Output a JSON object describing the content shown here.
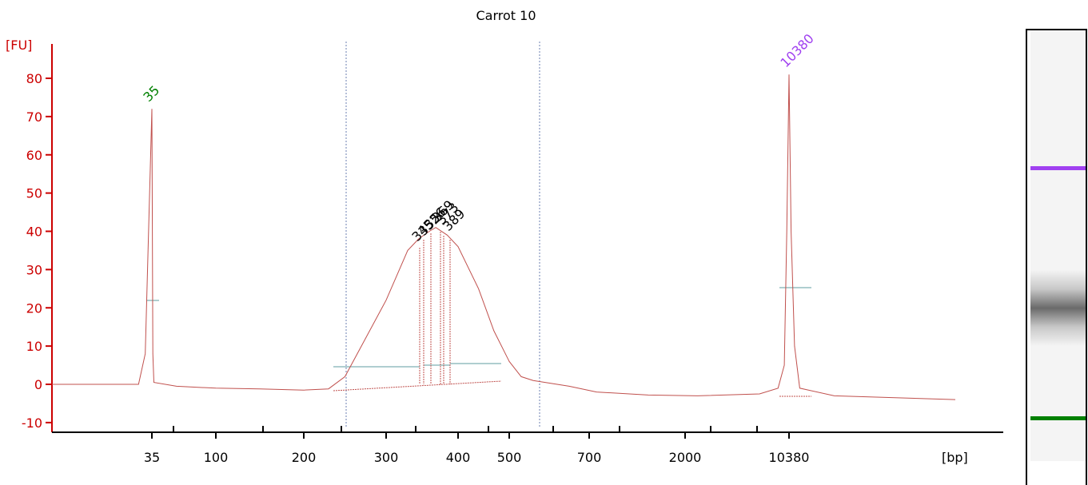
{
  "chart_data": {
    "type": "line",
    "title": "Carrot 10",
    "ylabel": "[FU]",
    "xlabel": "[bp]",
    "ylim": [
      -12,
      88
    ],
    "y_ticks": [
      -10,
      0,
      10,
      20,
      30,
      40,
      50,
      60,
      70,
      80
    ],
    "x_tick_labels": [
      "35",
      "100",
      "200",
      "300",
      "400",
      "500",
      "700",
      "2000",
      "10380"
    ],
    "x_tick_positions": [
      35,
      100,
      200,
      300,
      400,
      500,
      700,
      2000,
      10380
    ],
    "x_axis_scale": "nonlinear (electrophoresis size ladder)",
    "series": [
      {
        "color": "#c0504d",
        "points": [
          [
            20,
            0
          ],
          [
            33,
            0
          ],
          [
            34,
            8
          ],
          [
            35,
            72
          ],
          [
            36,
            8
          ],
          [
            37,
            0.5
          ],
          [
            60,
            -0.5
          ],
          [
            100,
            -1
          ],
          [
            150,
            -1.2
          ],
          [
            200,
            -1.5
          ],
          [
            230,
            -1.2
          ],
          [
            250,
            2
          ],
          [
            270,
            10
          ],
          [
            300,
            22
          ],
          [
            330,
            35
          ],
          [
            345,
            38
          ],
          [
            360,
            40
          ],
          [
            369,
            41
          ],
          [
            385,
            39
          ],
          [
            400,
            36
          ],
          [
            440,
            25
          ],
          [
            470,
            14
          ],
          [
            500,
            6
          ],
          [
            530,
            2
          ],
          [
            560,
            1
          ],
          [
            650,
            -0.5
          ],
          [
            800,
            -2
          ],
          [
            1500,
            -2.8
          ],
          [
            3000,
            -3
          ],
          [
            8000,
            -2.5
          ],
          [
            9500,
            -1
          ],
          [
            10000,
            5
          ],
          [
            10200,
            40
          ],
          [
            10380,
            81
          ],
          [
            10500,
            40
          ],
          [
            10700,
            10
          ],
          [
            11000,
            -1
          ],
          [
            13000,
            -3
          ],
          [
            20000,
            -4
          ]
        ]
      }
    ],
    "marker_peaks": [
      {
        "label": "35",
        "x": 35,
        "y": 72,
        "color": "#008000"
      },
      {
        "label": "10380",
        "x": 10380,
        "y": 81,
        "color": "#a040f0"
      }
    ],
    "sample_peak_labels": [
      "345",
      "352",
      "356",
      "369",
      "373",
      "389"
    ],
    "region_lines_x": [
      255,
      570
    ],
    "colors": {
      "axis": "#cc0000",
      "trace": "#c0504d",
      "marker_lower": "#008000",
      "marker_upper": "#a040f0",
      "baseline_segments": "#5f9ea0",
      "region_lines": "#6b7fb0"
    }
  },
  "gel": {
    "upper_band_color": "#a040f0",
    "lower_band_color": "#008000"
  }
}
